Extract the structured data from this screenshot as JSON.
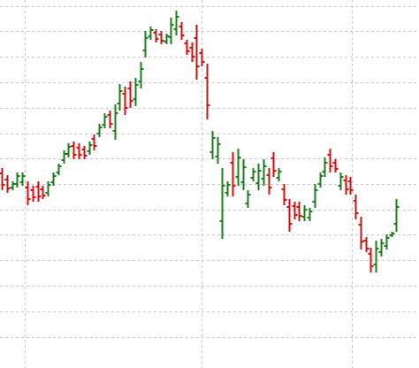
{
  "chart_data": {
    "type": "ohlc",
    "up_color": "#1a7f1a",
    "down_color": "#d01010",
    "grid": true,
    "xlim": [
      -0.35,
      81.4
    ],
    "xticks": [
      4.5,
      39,
      68.3
    ],
    "ylim": [
      0,
      416
    ],
    "yticks": [
      35,
      64,
      93,
      122,
      151,
      179,
      208,
      237,
      265,
      294,
      323,
      352,
      381,
      409
    ],
    "open": [
      220,
      213,
      204,
      208,
      210,
      204,
      201,
      205,
      202,
      198,
      210,
      221,
      235,
      242,
      251,
      249,
      247,
      245,
      259,
      265,
      275,
      286,
      268,
      299,
      310,
      316,
      304,
      324,
      359,
      375,
      379,
      377,
      369,
      374,
      383,
      386,
      367,
      362,
      373,
      356,
      328,
      244,
      239,
      166,
      198,
      232,
      216,
      210,
      186,
      215,
      209,
      214,
      218,
      237,
      215,
      202,
      182,
      183,
      182,
      171,
      170,
      188,
      208,
      222,
      241,
      232,
      206,
      212,
      211,
      189,
      162,
      144,
      129,
      117,
      131,
      138,
      150,
      163
    ],
    "high": [
      226,
      218,
      211,
      221,
      221,
      211,
      206,
      211,
      206,
      211,
      221,
      231,
      246,
      254,
      256,
      254,
      251,
      256,
      264,
      276,
      288,
      291,
      298,
      321,
      318,
      324,
      328,
      346,
      381,
      386,
      383,
      381,
      378,
      396,
      404,
      391,
      371,
      368,
      388,
      361,
      344,
      268,
      261,
      226,
      211,
      244,
      248,
      236,
      201,
      226,
      231,
      236,
      226,
      244,
      226,
      208,
      191,
      188,
      188,
      184,
      181,
      208,
      221,
      238,
      248,
      236,
      221,
      218,
      216,
      196,
      171,
      148,
      136,
      144,
      146,
      151,
      154,
      191
    ],
    "low": [
      201,
      198,
      201,
      204,
      206,
      184,
      188,
      188,
      191,
      194,
      206,
      218,
      231,
      238,
      236,
      236,
      236,
      241,
      246,
      261,
      271,
      271,
      258,
      291,
      286,
      294,
      296,
      316,
      351,
      371,
      368,
      366,
      366,
      366,
      376,
      371,
      354,
      346,
      326,
      341,
      281,
      236,
      231,
      146,
      194,
      194,
      206,
      201,
      181,
      211,
      201,
      206,
      196,
      216,
      211,
      184,
      154,
      168,
      166,
      166,
      166,
      181,
      204,
      216,
      221,
      221,
      201,
      196,
      196,
      168,
      134,
      131,
      108,
      108,
      126,
      134,
      148,
      154
    ],
    "close": [
      207,
      203,
      208,
      217,
      217,
      191,
      193,
      194,
      195,
      207,
      217,
      228,
      242,
      250,
      241,
      241,
      240,
      252,
      251,
      272,
      284,
      276,
      288,
      313,
      294,
      302,
      320,
      338,
      373,
      382,
      372,
      370,
      375,
      388,
      397,
      376,
      358,
      352,
      341,
      346,
      297,
      260,
      253,
      206,
      207,
      206,
      238,
      227,
      196,
      222,
      223,
      228,
      204,
      223,
      222,
      190,
      163,
      173,
      172,
      179,
      177,
      201,
      217,
      232,
      228,
      225,
      216,
      202,
      201,
      175,
      143,
      135,
      115,
      135,
      141,
      147,
      152,
      182
    ]
  }
}
